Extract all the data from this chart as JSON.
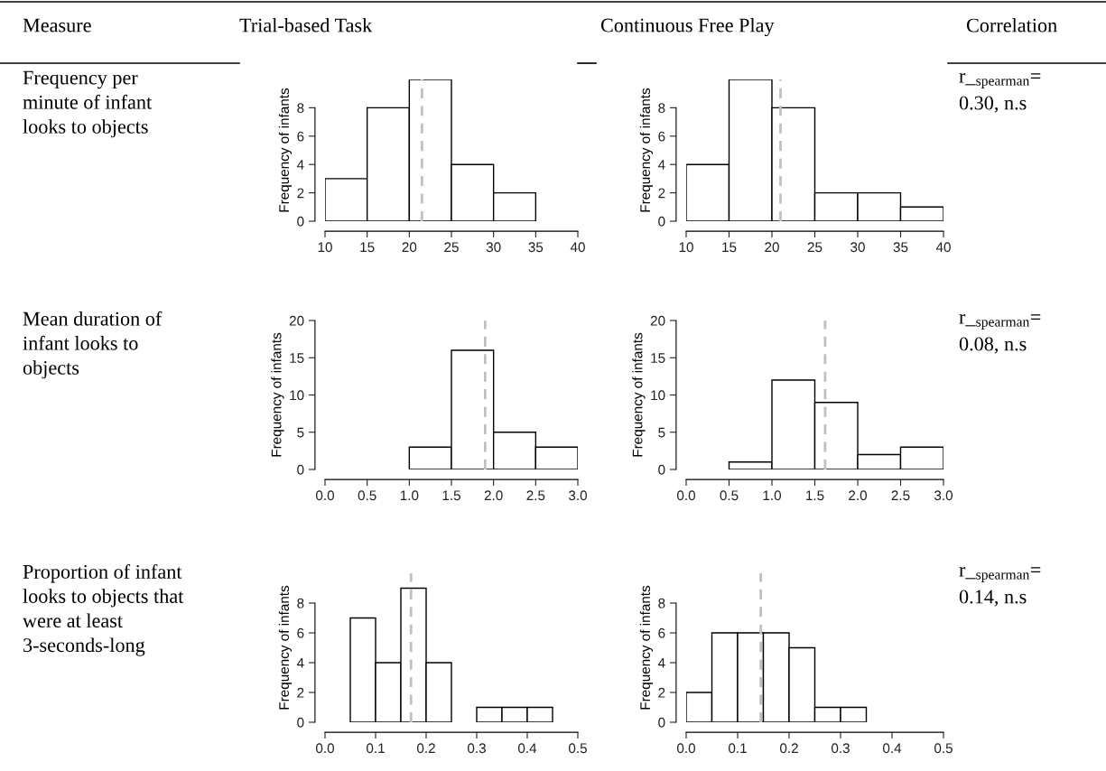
{
  "chart_data": [
    {
      "type": "histogram",
      "title": "Trial-based Task",
      "ylabel": "Frequency of infants",
      "color": "#ffffff",
      "bins": [
        10,
        15,
        20,
        25,
        30,
        35
      ],
      "values": [
        3,
        8,
        10,
        4,
        2
      ],
      "xlim": [
        10,
        40
      ],
      "xticks": [
        10,
        15,
        20,
        25,
        30,
        35,
        40
      ],
      "ylim": [
        0,
        10
      ],
      "yticks": [
        0,
        2,
        4,
        6,
        8
      ],
      "ref_lines": [
        {
          "axis": "x",
          "value": 21.5,
          "color": "#c0c0c0",
          "line_style": "dashed"
        }
      ],
      "annotations": [
        "Measure",
        "Frequency per minute of infant looks to objects"
      ]
    },
    {
      "type": "histogram",
      "title": "Continuous Free Play",
      "ylabel": "Frequency of infants",
      "color": "#ffffff",
      "bins": [
        10,
        15,
        20,
        25,
        30,
        35,
        40
      ],
      "values": [
        4,
        10,
        8,
        2,
        2,
        1
      ],
      "xlim": [
        10,
        40
      ],
      "xticks": [
        10,
        15,
        20,
        25,
        30,
        35,
        40
      ],
      "ylim": [
        0,
        10
      ],
      "yticks": [
        0,
        2,
        4,
        6,
        8
      ],
      "ref_lines": [
        {
          "axis": "x",
          "value": 21.0,
          "color": "#c0c0c0",
          "line_style": "dashed"
        }
      ],
      "annotations": [
        "Correlation",
        "r_$_{spearman}$= 0.30, n.s"
      ]
    },
    {
      "type": "histogram",
      "ylabel": "Frequency of infants",
      "color": "#ffffff",
      "bins": [
        1.0,
        1.5,
        2.0,
        2.5,
        3.0
      ],
      "values": [
        3,
        16,
        5,
        3
      ],
      "xlim": [
        0,
        3
      ],
      "xticks": [
        {
          "value": 0,
          "label": "0.0"
        },
        0.5,
        {
          "value": 1,
          "label": "1.0"
        },
        1.5,
        {
          "value": 2,
          "label": "2.0"
        },
        2.5,
        {
          "value": 3,
          "label": "3.0"
        }
      ],
      "ylim": [
        0,
        20
      ],
      "yticks": [
        0,
        5,
        10,
        15,
        20
      ],
      "ref_lines": [
        {
          "axis": "x",
          "value": 1.9,
          "color": "#c0c0c0",
          "line_style": "dashed"
        }
      ],
      "annotations": [
        "Mean duration of infant looks to objects"
      ]
    },
    {
      "type": "histogram",
      "ylabel": "Frequency of infants",
      "color": "#ffffff",
      "bins": [
        0.5,
        1.0,
        1.5,
        2.0,
        2.5,
        3.0
      ],
      "values": [
        1,
        12,
        9,
        2,
        3
      ],
      "xlim": [
        0,
        3
      ],
      "xticks": [
        {
          "value": 0,
          "label": "0.0"
        },
        0.5,
        {
          "value": 1,
          "label": "1.0"
        },
        1.5,
        {
          "value": 2,
          "label": "2.0"
        },
        2.5,
        {
          "value": 3,
          "label": "3.0"
        }
      ],
      "ylim": [
        0,
        20
      ],
      "yticks": [
        0,
        5,
        10,
        15,
        20
      ],
      "ref_lines": [
        {
          "axis": "x",
          "value": 1.62,
          "color": "#c0c0c0",
          "line_style": "dashed"
        }
      ],
      "annotations": [
        "r_$_{spearman}$= 0.08, n.s"
      ]
    },
    {
      "type": "histogram",
      "ylabel": "Frequency of infants",
      "color": "#ffffff",
      "bins": [
        0.05,
        0.1,
        0.15,
        0.2,
        0.25,
        0.3,
        0.35,
        0.4,
        0.45
      ],
      "values": [
        7,
        4,
        9,
        4,
        0,
        1,
        1,
        1
      ],
      "xlim": [
        0,
        0.5
      ],
      "xticks": [
        {
          "value": 0,
          "label": "0.0"
        },
        0.1,
        0.2,
        0.3,
        0.4,
        0.5
      ],
      "ylim": [
        0,
        10
      ],
      "yticks": [
        0,
        2,
        4,
        6,
        8
      ],
      "ref_lines": [
        {
          "axis": "x",
          "value": 0.17,
          "color": "#c0c0c0",
          "line_style": "dashed"
        }
      ],
      "annotations": [
        "Proportion of infant looks to objects that were at least 3-seconds-long"
      ]
    },
    {
      "type": "histogram",
      "ylabel": "Frequency of infants",
      "color": "#ffffff",
      "bins": [
        0,
        0.05,
        0.1,
        0.15,
        0.2,
        0.25,
        0.3,
        0.35
      ],
      "values": [
        2,
        6,
        6,
        6,
        5,
        1,
        1
      ],
      "xlim": [
        0,
        0.5
      ],
      "xticks": [
        {
          "value": 0,
          "label": "0.0"
        },
        0.1,
        0.2,
        0.3,
        0.4,
        0.5
      ],
      "ylim": [
        0,
        10
      ],
      "yticks": [
        0,
        2,
        4,
        6,
        8
      ],
      "ref_lines": [
        {
          "axis": "x",
          "value": 0.145,
          "color": "#c0c0c0",
          "line_style": "dashed"
        }
      ],
      "annotations": [
        "r_$_{spearman}$= 0.14, n.s"
      ]
    }
  ]
}
